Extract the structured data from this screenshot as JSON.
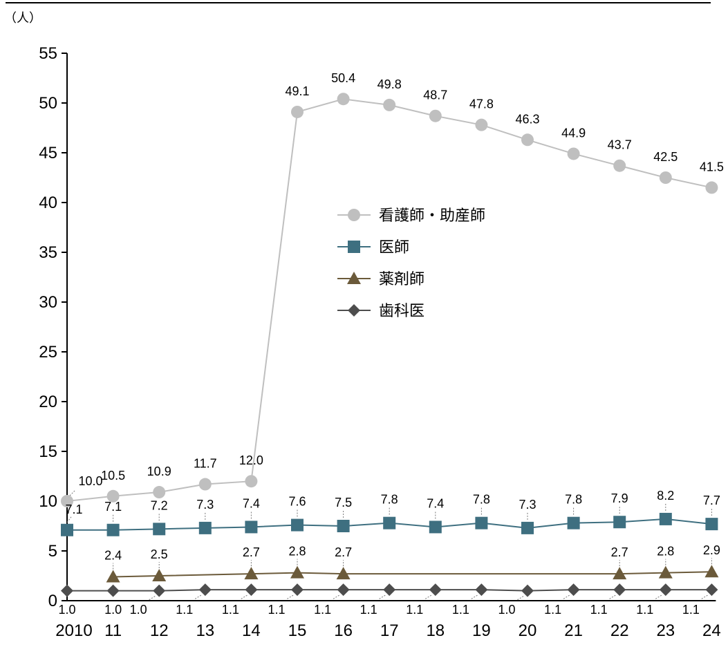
{
  "chart_data": {
    "type": "line",
    "unit_label": "（人）",
    "x": [
      "2010",
      "11",
      "12",
      "13",
      "14",
      "15",
      "16",
      "17",
      "18",
      "19",
      "20",
      "21",
      "22",
      "23",
      "24"
    ],
    "ylim": [
      0,
      55
    ],
    "yticks": [
      0,
      5,
      10,
      15,
      20,
      25,
      30,
      35,
      40,
      45,
      50,
      55
    ],
    "grid": false,
    "legend_position": "center",
    "series": [
      {
        "name": "看護師・助産師",
        "marker": "circle",
        "color": "#bfbfbf",
        "values": [
          10.0,
          10.5,
          10.9,
          11.7,
          12.0,
          49.1,
          50.4,
          49.8,
          48.7,
          47.8,
          46.3,
          44.9,
          43.7,
          42.5,
          41.5
        ],
        "labels": [
          "10.0",
          "10.5",
          "10.9",
          "11.7",
          "12.0",
          "49.1",
          "50.4",
          "49.8",
          "48.7",
          "47.8",
          "46.3",
          "44.9",
          "43.7",
          "42.5",
          "41.5"
        ]
      },
      {
        "name": "医師",
        "marker": "square",
        "color": "#3e6f80",
        "values": [
          7.1,
          7.1,
          7.2,
          7.3,
          7.4,
          7.6,
          7.5,
          7.8,
          7.4,
          7.8,
          7.3,
          7.8,
          7.9,
          8.2,
          7.7
        ],
        "labels": [
          "7.1",
          "7.1",
          "7.2",
          "7.3",
          "7.4",
          "7.6",
          "7.5",
          "7.8",
          "7.4",
          "7.8",
          "7.3",
          "7.8",
          "7.9",
          "8.2",
          "7.7"
        ]
      },
      {
        "name": "薬剤師",
        "marker": "triangle",
        "color": "#6b5a3a",
        "values": [
          null,
          2.4,
          2.5,
          null,
          2.7,
          2.8,
          2.7,
          null,
          null,
          null,
          null,
          null,
          2.7,
          2.8,
          2.9
        ],
        "labels": [
          null,
          "2.4",
          "2.5",
          null,
          "2.7",
          "2.8",
          "2.7",
          null,
          null,
          null,
          null,
          null,
          "2.7",
          "2.8",
          "2.9"
        ]
      },
      {
        "name": "歯科医",
        "marker": "diamond",
        "color": "#4d4d4d",
        "values": [
          1.0,
          1.0,
          1.0,
          1.1,
          1.1,
          1.1,
          1.1,
          1.1,
          1.1,
          1.1,
          1.0,
          1.1,
          1.1,
          1.1,
          1.1
        ],
        "labels": [
          "1.0",
          "1.0",
          "1.0",
          "1.1",
          "1.1",
          "1.1",
          "1.1",
          "1.1",
          "1.1",
          "1.1",
          "1.0",
          "1.1",
          "1.1",
          "1.1",
          "1.1"
        ]
      }
    ]
  }
}
